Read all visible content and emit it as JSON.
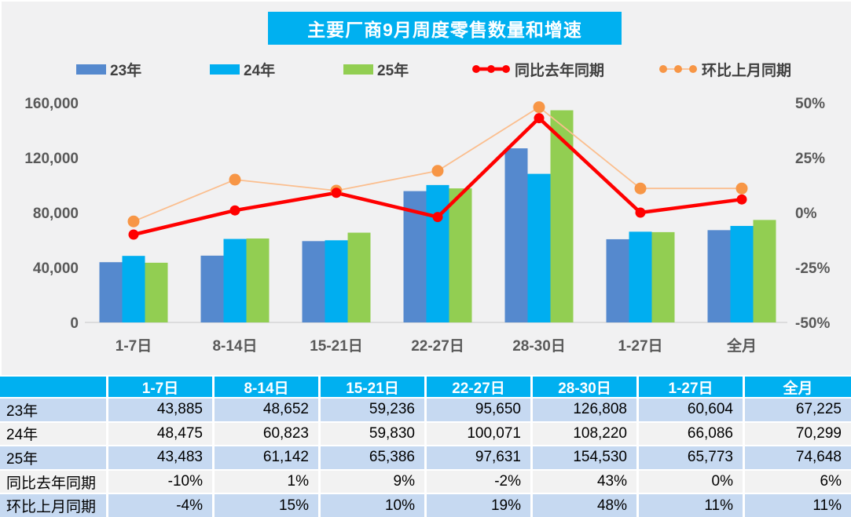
{
  "title": "主要厂商9月周度零售数量和增速",
  "colors": {
    "accent": "#00B0F0",
    "bar_23": "#5589CE",
    "bar_24": "#00AEF0",
    "bar_25": "#92CE52",
    "line_yoy": "#FF0000",
    "line_mom": "#FBBE8E",
    "marker_mom": "#F79646",
    "axis_text": "#595959",
    "legend_text": "#404040",
    "baseline": "#D6D6D6",
    "table_row_blue": "#C6D9F1",
    "table_row_gray": "#F2F2F2"
  },
  "chart_data": {
    "type": "bar+line",
    "title": "主要厂商9月周度零售数量和增速",
    "xlabel": "",
    "ylabel_left": "",
    "ylabel_right": "",
    "grid": false,
    "legend_position": "top",
    "categories": [
      "1-7日",
      "8-14日",
      "15-21日",
      "22-27日",
      "28-30日",
      "1-27日",
      "全月"
    ],
    "bar_series": [
      {
        "name": "23年",
        "color": "#5589CE",
        "values": [
          43885,
          48652,
          59236,
          95650,
          126808,
          60604,
          67225
        ]
      },
      {
        "name": "24年",
        "color": "#00AEF0",
        "values": [
          48475,
          60823,
          59830,
          100071,
          108220,
          66086,
          70299
        ]
      },
      {
        "name": "25年",
        "color": "#92CE52",
        "values": [
          43483,
          61142,
          65386,
          97631,
          154530,
          65773,
          74648
        ]
      }
    ],
    "line_series": [
      {
        "name": "同比去年同期",
        "color": "#FF0000",
        "marker_color": "#FF0000",
        "width": 4.5,
        "marker_r": 6.5,
        "values": [
          -10,
          1,
          9,
          -2,
          43,
          0,
          6
        ]
      },
      {
        "name": "环比上月同期",
        "color": "#FBBE8E",
        "marker_color": "#F79646",
        "width": 1.8,
        "marker_r": 7.5,
        "values": [
          -4,
          15,
          10,
          19,
          48,
          11,
          11
        ]
      }
    ],
    "left_axis": {
      "min": 0,
      "max": 160000,
      "ticks": [
        {
          "label": "160,000",
          "value": 160000
        },
        {
          "label": "120,000",
          "value": 120000
        },
        {
          "label": "80,000",
          "value": 80000
        },
        {
          "label": "40,000",
          "value": 40000
        },
        {
          "label": "0",
          "value": 0
        }
      ]
    },
    "right_axis": {
      "min": -50,
      "max": 50,
      "ticks": [
        {
          "label": "50%",
          "value": 50
        },
        {
          "label": "25%",
          "value": 25
        },
        {
          "label": "0%",
          "value": 0
        },
        {
          "label": "-25%",
          "value": -25
        },
        {
          "label": "-50%",
          "value": -50
        }
      ]
    }
  },
  "table": {
    "header": [
      "",
      "1-7日",
      "8-14日",
      "15-21日",
      "22-27日",
      "28-30日",
      "1-27日",
      "全月"
    ],
    "rows": [
      {
        "label": "23年",
        "tone": "blue",
        "cells": [
          "43,885",
          "48,652",
          "59,236",
          "95,650",
          "126,808",
          "60,604",
          "67,225"
        ]
      },
      {
        "label": "24年",
        "tone": "gray",
        "cells": [
          "48,475",
          "60,823",
          "59,830",
          "100,071",
          "108,220",
          "66,086",
          "70,299"
        ]
      },
      {
        "label": "25年",
        "tone": "blue",
        "cells": [
          "43,483",
          "61,142",
          "65,386",
          "97,631",
          "154,530",
          "65,773",
          "74,648"
        ]
      },
      {
        "label": "同比去年同期",
        "tone": "gray",
        "cells": [
          "-10%",
          "1%",
          "9%",
          "-2%",
          "43%",
          "0%",
          "6%"
        ]
      },
      {
        "label": "环比上月同期",
        "tone": "blue",
        "cells": [
          "-4%",
          "15%",
          "10%",
          "19%",
          "48%",
          "11%",
          "11%"
        ]
      }
    ]
  }
}
